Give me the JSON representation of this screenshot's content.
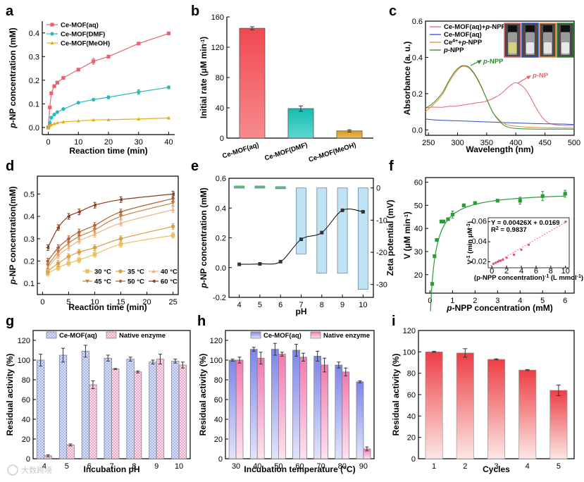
{
  "figure": {
    "watermark": "大数跨境"
  },
  "chart_data": [
    {
      "id": "a",
      "letter": "a",
      "type": "line",
      "xlabel": "Reaction time (min)",
      "ylabel_prefix": "p",
      "ylabel": "-NP concentration (mM)",
      "xlim": [
        -2,
        42
      ],
      "ylim": [
        -0.03,
        0.45
      ],
      "xticks": [
        0,
        10,
        20,
        30,
        40
      ],
      "yticks": [
        0.0,
        0.1,
        0.2,
        0.3,
        0.4
      ],
      "ytick_labels": [
        "0.0",
        "0.1",
        "0.2",
        "0.3",
        "0.4"
      ],
      "series": [
        {
          "name": "Ce-MOF(aq)",
          "color": "#e8636e",
          "marker": "square",
          "x": [
            0,
            0.5,
            1,
            2,
            3,
            5,
            10,
            15,
            20,
            30,
            40
          ],
          "y": [
            0.0,
            0.085,
            0.145,
            0.175,
            0.19,
            0.21,
            0.245,
            0.28,
            0.3,
            0.355,
            0.398
          ],
          "err": [
            0,
            0,
            0,
            0,
            0,
            0,
            0,
            0.012,
            0,
            0,
            0.006
          ]
        },
        {
          "name": "Ce-MOF(DMF)",
          "color": "#2ab8b8",
          "marker": "circle",
          "x": [
            0,
            0.5,
            1,
            2,
            3,
            5,
            10,
            15,
            20,
            30,
            40
          ],
          "y": [
            0.0,
            0.02,
            0.042,
            0.055,
            0.065,
            0.078,
            0.105,
            0.118,
            0.128,
            0.15,
            0.17
          ],
          "err": [
            0,
            0,
            0,
            0,
            0,
            0,
            0,
            0.004,
            0.006,
            0.01,
            0.006
          ]
        },
        {
          "name": "Ce-MOF(MeOH)",
          "color": "#e8b020",
          "marker": "triangle",
          "x": [
            0,
            0.5,
            1,
            2,
            3,
            5,
            10,
            15,
            20,
            30,
            40
          ],
          "y": [
            0.0,
            0.008,
            0.012,
            0.016,
            0.02,
            0.024,
            0.028,
            0.032,
            0.033,
            0.036,
            0.04
          ],
          "err": [
            0,
            0,
            0,
            0,
            0,
            0,
            0,
            0,
            0,
            0,
            0.003
          ]
        }
      ]
    },
    {
      "id": "b",
      "letter": "b",
      "type": "bar",
      "ylabel": "Initial rate (μM min",
      "ylabel_sup": "-1",
      "ylabel_end": ")",
      "categories": [
        "Ce-MOF(aq)",
        "Ce-MOF(DMF)",
        "Ce-MOF(MeOH)"
      ],
      "values": [
        145,
        39,
        9.5
      ],
      "errors": [
        2,
        3.5,
        1.5
      ],
      "colors": [
        "#f45e66",
        "#1cc4bc",
        "#e2a52a"
      ],
      "ylim": [
        0,
        160
      ],
      "yticks": [
        0,
        40,
        80,
        120,
        160
      ]
    },
    {
      "id": "c",
      "letter": "c",
      "type": "line",
      "xlabel": "Wavelength (nm)",
      "ylabel": "Absorbance (a. u.)",
      "xlim": [
        245,
        500
      ],
      "ylim": [
        -0.03,
        0.6
      ],
      "xticks": [
        250,
        300,
        350,
        400,
        450,
        500
      ],
      "yticks": [
        0.0,
        0.2,
        0.4,
        0.6
      ],
      "ytick_labels": [
        "0.0",
        "0.2",
        "0.4",
        "0.6"
      ],
      "legend": [
        {
          "label": "Ce-MOF(aq)+",
          "italic": "p",
          "label_end": "-NPP",
          "color": "#e8636e"
        },
        {
          "label": "Ce-MOF(aq)",
          "italic": "",
          "label_end": "",
          "color": "#3050c0"
        },
        {
          "label": "Ce",
          "sup": "4+",
          "label_mid": "+",
          "italic": "p",
          "label_end": "-NPP",
          "color": "#f08a30"
        },
        {
          "label": "",
          "italic": "p",
          "label_end": "-NPP",
          "color": "#2a8a2a"
        }
      ],
      "annotations": [
        {
          "text": "-NPP",
          "italic": "p",
          "color": "#2a8a2a"
        },
        {
          "text": "-NP",
          "italic": "p",
          "color": "#e8636e"
        }
      ],
      "series": [
        {
          "name": "Ce-MOF(aq)+p-NPP",
          "color": "#e8636e",
          "x": [
            245,
            255,
            265,
            275,
            285,
            295,
            305,
            315,
            325,
            335,
            345,
            355,
            365,
            375,
            385,
            395,
            400,
            405,
            415,
            425,
            435,
            445,
            455,
            465,
            480,
            500
          ],
          "y": [
            0.12,
            0.125,
            0.125,
            0.125,
            0.13,
            0.13,
            0.135,
            0.14,
            0.145,
            0.15,
            0.155,
            0.165,
            0.18,
            0.2,
            0.23,
            0.255,
            0.26,
            0.255,
            0.23,
            0.18,
            0.12,
            0.07,
            0.04,
            0.03,
            0.025,
            0.025
          ]
        },
        {
          "name": "Ce-MOF(aq)",
          "color": "#3050c0",
          "x": [
            245,
            260,
            280,
            300,
            320,
            340,
            360,
            380,
            400,
            420,
            440,
            460,
            480,
            500
          ],
          "y": [
            0.06,
            0.055,
            0.052,
            0.05,
            0.048,
            0.045,
            0.043,
            0.04,
            0.038,
            0.036,
            0.034,
            0.033,
            0.032,
            0.03
          ]
        },
        {
          "name": "Ce4++p-NPP",
          "color": "#f08a30",
          "x": [
            245,
            255,
            265,
            275,
            285,
            295,
            305,
            312,
            320,
            330,
            340,
            350,
            360,
            370,
            380,
            390,
            400,
            420,
            450,
            500
          ],
          "y": [
            0.1,
            0.13,
            0.16,
            0.2,
            0.26,
            0.31,
            0.345,
            0.35,
            0.34,
            0.3,
            0.24,
            0.17,
            0.1,
            0.06,
            0.035,
            0.025,
            0.02,
            0.015,
            0.012,
            0.01
          ]
        },
        {
          "name": "p-NPP",
          "color": "#2a8a2a",
          "x": [
            245,
            255,
            265,
            275,
            285,
            295,
            305,
            312,
            320,
            330,
            340,
            350,
            360,
            370,
            380,
            390,
            400,
            420,
            450,
            500
          ],
          "y": [
            0.12,
            0.14,
            0.17,
            0.21,
            0.27,
            0.32,
            0.35,
            0.355,
            0.345,
            0.305,
            0.245,
            0.17,
            0.1,
            0.055,
            0.025,
            0.012,
            0.008,
            0.005,
            0.004,
            0.004
          ]
        }
      ]
    },
    {
      "id": "d",
      "letter": "d",
      "type": "line",
      "xlabel": "Reaction time (min)",
      "ylabel_prefix": "p",
      "ylabel": "-NP concentration(mM)",
      "xlim": [
        -1,
        26
      ],
      "ylim": [
        0.05,
        0.58
      ],
      "xticks": [
        0,
        5,
        10,
        15,
        20,
        25
      ],
      "yticks": [
        0.1,
        0.2,
        0.3,
        0.4,
        0.5
      ],
      "ytick_labels": [
        "0.1",
        "0.2",
        "0.3",
        "0.4",
        "0.5"
      ],
      "series": [
        {
          "name": "30 °C",
          "color": "#e8c060",
          "marker": "square",
          "x": [
            1,
            3,
            5,
            7,
            10,
            15,
            25
          ],
          "y": [
            0.145,
            0.17,
            0.19,
            0.205,
            0.23,
            0.275,
            0.315
          ]
        },
        {
          "name": "35 °C",
          "color": "#d8a040",
          "marker": "circle",
          "x": [
            1,
            3,
            5,
            7,
            10,
            15,
            25
          ],
          "y": [
            0.155,
            0.19,
            0.22,
            0.24,
            0.26,
            0.3,
            0.355
          ]
        },
        {
          "name": "40 °C",
          "color": "#f0b080",
          "marker": "triangle",
          "x": [
            1,
            3,
            5,
            7,
            10,
            15,
            25
          ],
          "y": [
            0.17,
            0.225,
            0.26,
            0.29,
            0.32,
            0.37,
            0.43
          ]
        },
        {
          "name": "45 °C",
          "color": "#c88040",
          "marker": "tri-down",
          "x": [
            1,
            3,
            5,
            7,
            10,
            15,
            25
          ],
          "y": [
            0.18,
            0.24,
            0.28,
            0.31,
            0.34,
            0.4,
            0.46
          ]
        },
        {
          "name": "50 °C",
          "color": "#b06030",
          "marker": "diamond",
          "x": [
            1,
            3,
            5,
            7,
            10,
            15,
            25
          ],
          "y": [
            0.2,
            0.26,
            0.3,
            0.33,
            0.36,
            0.42,
            0.48
          ]
        },
        {
          "name": "60 °C",
          "color": "#8a3a18",
          "marker": "tri-left",
          "x": [
            1,
            3,
            5,
            7,
            10,
            15,
            25
          ],
          "y": [
            0.26,
            0.35,
            0.4,
            0.42,
            0.45,
            0.475,
            0.5
          ]
        }
      ]
    },
    {
      "id": "e",
      "letter": "e",
      "type": "bar",
      "xlabel": "pH",
      "ylabel_prefix": "p",
      "ylabel": "-NP concentration (mM)",
      "ylabel_right": "Zeta potential (mV)",
      "categories": [
        "4",
        "5",
        "6",
        "7",
        "8",
        "9",
        "10"
      ],
      "xlim": [
        3.5,
        10.5
      ],
      "ylim": [
        -0.2,
        0.6
      ],
      "yticks": [
        -0.2,
        0.0,
        0.2,
        0.4,
        0.6
      ],
      "ytick_labels": [
        "-0.2",
        "0.0",
        "0.2",
        "0.4",
        "0.6"
      ],
      "ylim_right": [
        -34,
        3
      ],
      "yticks_right": [
        0,
        -10,
        -20,
        -30
      ],
      "ytick_labels_right": [
        "0",
        "-10",
        "-20",
        "-30"
      ],
      "concentration": [
        0.022,
        0.025,
        0.04,
        0.19,
        0.235,
        0.385,
        0.375
      ],
      "zeta": [
        0.6,
        0.6,
        0.4,
        -20.5,
        -26.5,
        -26.5,
        -31.5
      ],
      "zeta_colors": {
        "positive": "#6db888",
        "negative": "#bfe3f2"
      }
    },
    {
      "id": "f",
      "letter": "f",
      "type": "scatter",
      "xlabel_prefix": "p",
      "xlabel": "-NPP concentration (mM)",
      "ylabel": "V (μM min",
      "ylabel_sup": "-1",
      "ylabel_end": ")",
      "xlim": [
        -0.2,
        6.4
      ],
      "ylim": [
        12,
        62
      ],
      "xticks": [
        0,
        1,
        2,
        3,
        4,
        5,
        6
      ],
      "yticks": [
        20,
        30,
        40,
        50,
        60
      ],
      "x": [
        0.1,
        0.2,
        0.3,
        0.5,
        0.6,
        0.8,
        1.0,
        1.5,
        2.0,
        3.0,
        4.0,
        5.0,
        6.0
      ],
      "y": [
        16,
        28,
        35,
        43,
        43,
        44,
        46,
        50,
        51,
        52,
        52,
        54,
        55
      ],
      "err": [
        0,
        0,
        0,
        0,
        0,
        0,
        1.5,
        0,
        0,
        0,
        1.5,
        2,
        1.5
      ],
      "color": "#2a9a3a",
      "inset": {
        "equation": "Y = 0.00426X + 0.0169",
        "r2_label": "R",
        "r2_value": "= 0.9837",
        "xlabel": "(p-NPP concentration)",
        "xlabel_unit": " (L mmol",
        "xlabel_end": ")",
        "ylabel": "V",
        "ylabel_unit": " (min μM",
        "ylabel_end": ")",
        "xlim": [
          -0.5,
          10.5
        ],
        "ylim": [
          0.014,
          0.064
        ],
        "xticks": [
          0,
          2,
          4,
          6,
          8,
          10
        ],
        "yticks": [
          0.02,
          0.04,
          0.06
        ],
        "ytick_labels": [
          "0.02",
          "0.04",
          "0.06"
        ],
        "x": [
          0.2,
          0.5,
          0.8,
          1.0,
          1.2,
          1.5,
          2.0,
          3.0,
          4.0,
          5.0,
          10.0
        ],
        "y": [
          0.018,
          0.019,
          0.02,
          0.021,
          0.021,
          0.022,
          0.024,
          0.027,
          0.032,
          0.037,
          0.06
        ],
        "color": "#e05080"
      }
    },
    {
      "id": "g",
      "letter": "g",
      "type": "bar",
      "xlabel": "Incubation pH",
      "ylabel": "Residual activity (%)",
      "categories": [
        "4",
        "5",
        "6",
        "7",
        "8",
        "9",
        "10"
      ],
      "ylim": [
        0,
        130
      ],
      "yticks": [
        0,
        20,
        40,
        60,
        80,
        100,
        120
      ],
      "series": [
        {
          "name": "Ce-MOF(aq)",
          "color": "#b8c4ee",
          "values": [
            100,
            105,
            109,
            102,
            101,
            98,
            99
          ],
          "err": [
            6,
            7,
            6,
            3,
            2,
            2,
            2
          ]
        },
        {
          "name": "Native enzyme",
          "color": "#f6b6d2",
          "values": [
            3,
            14,
            75,
            91,
            88,
            101,
            95
          ],
          "err": [
            1,
            1,
            4,
            0.5,
            1,
            5,
            3
          ]
        }
      ]
    },
    {
      "id": "h",
      "letter": "h",
      "type": "bar",
      "xlabel": "Incubation temperature (°C)",
      "ylabel": "Residual activity (%)",
      "categories": [
        "30",
        "40",
        "50",
        "60",
        "70",
        "80",
        "90"
      ],
      "ylim": [
        0,
        130
      ],
      "yticks": [
        0,
        20,
        40,
        60,
        80,
        100,
        120
      ],
      "series": [
        {
          "name": "Ce-MOF(aq)",
          "color": "#8d94e8",
          "values": [
            100,
            111,
            111,
            110,
            104,
            95,
            78
          ],
          "err": [
            1,
            2,
            6,
            6,
            5,
            3,
            1
          ]
        },
        {
          "name": "Native enzyme",
          "color": "#f39ac0",
          "values": [
            100,
            102,
            106,
            103,
            95,
            88,
            10
          ],
          "err": [
            3,
            6,
            2,
            4,
            7,
            4,
            2
          ]
        }
      ]
    },
    {
      "id": "i",
      "letter": "i",
      "type": "bar",
      "xlabel": "Cycles",
      "ylabel": "Residual activity (%)",
      "categories": [
        "1",
        "2",
        "3",
        "4",
        "5"
      ],
      "values": [
        100,
        99,
        93,
        83,
        64
      ],
      "errors": [
        0.5,
        4,
        0.5,
        0.5,
        5
      ],
      "color": "#ec4a4e",
      "ylim": [
        0,
        120
      ],
      "yticks": [
        0,
        20,
        40,
        60,
        80,
        100,
        120
      ]
    }
  ]
}
